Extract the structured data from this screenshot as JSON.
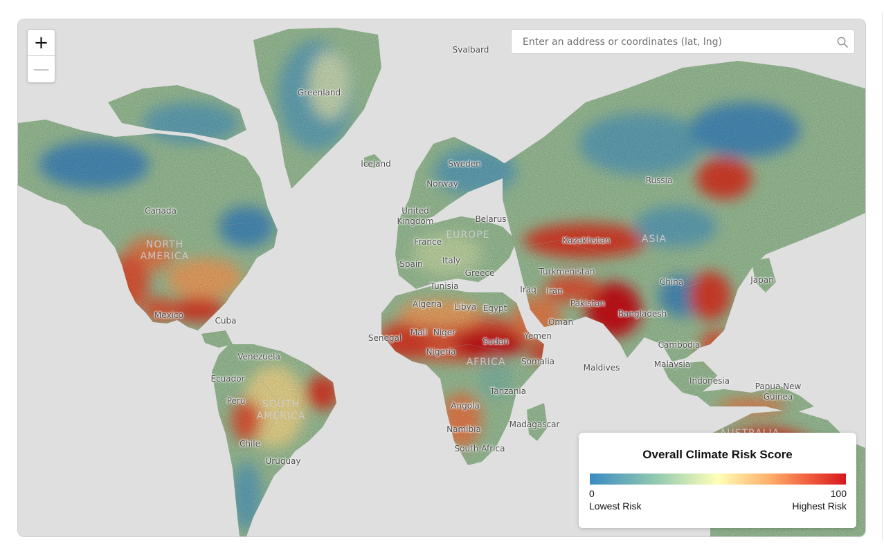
{
  "map": {
    "search_placeholder": "Enter an address or coordinates (lat, lng)",
    "zoom_in_label": "+",
    "zoom_out_label": "—",
    "legend": {
      "title": "Overall Climate Risk Score",
      "min_value": "0",
      "max_value": "100",
      "min_label": "Lowest Risk",
      "max_label": "Highest Risk",
      "colors": [
        "#3b8bc4",
        "#8fc7b0",
        "#ffffb8",
        "#fdb06a",
        "#f0603e",
        "#d7191c"
      ]
    },
    "icons": [
      "search-icon"
    ],
    "continent_labels": [
      "NORTH AMERICA",
      "SOUTH AMERICA",
      "EUROPE",
      "AFRICA",
      "ASIA",
      "AUSTRALIA"
    ],
    "place_labels": [
      "Svalbard",
      "Greenland",
      "Iceland",
      "Sweden",
      "Norway",
      "Canada",
      "United Kingdom",
      "Belarus",
      "France",
      "Spain",
      "Italy",
      "Greece",
      "Tunisia",
      "Algeria",
      "Libya",
      "Egypt",
      "Mali",
      "Niger",
      "Senegal",
      "Sudan",
      "Nigeria",
      "Somalia",
      "Tanzania",
      "Angola",
      "Namibia",
      "South Africa",
      "Madagascar",
      "Russia",
      "Kazakhstan",
      "Turkmenistan",
      "Iraq",
      "Iran",
      "Pakistan",
      "Oman",
      "Yemen",
      "Bangladesh",
      "China",
      "Japan",
      "Cambodia",
      "Malaysia",
      "Maldives",
      "Indonesia",
      "Papua New Guinea",
      "Mexico",
      "Cuba",
      "Venezuela",
      "Ecuador",
      "Peru",
      "Chile",
      "Uruguay"
    ]
  }
}
